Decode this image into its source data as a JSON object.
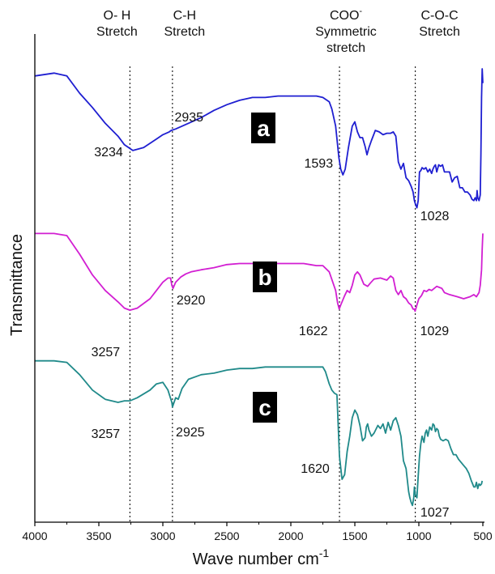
{
  "chart_data": {
    "type": "line",
    "title": "",
    "xlabel": "Wave number cm",
    "xlabel_sup": "-1",
    "ylabel": "Transmittance",
    "xlim": [
      4000,
      500
    ],
    "x_reversed": true,
    "xticks": [
      4000,
      3500,
      3000,
      2500,
      2000,
      1500,
      1000,
      500
    ],
    "y_ticks_shown": false,
    "grid": false,
    "legend": "none",
    "band_labels": [
      {
        "x": 3257,
        "lines": [
          "O- H",
          "Stretch"
        ]
      },
      {
        "x": 2925,
        "lines": [
          "C-H",
          "Stretch"
        ]
      },
      {
        "x": 1620,
        "lines": [
          "COO",
          "Symmetric",
          "stretch"
        ],
        "sup": "-"
      },
      {
        "x": 1028,
        "lines": [
          "C-O-C",
          "Stretch"
        ]
      }
    ],
    "reference_lines_x": [
      3257,
      2925,
      1620,
      1028
    ],
    "series": [
      {
        "name": "a",
        "color": "#1f1fd1",
        "x": [
          4000,
          3850,
          3750,
          3650,
          3550,
          3450,
          3350,
          3300,
          3234,
          3150,
          3050,
          3000,
          2950,
          2935,
          2900,
          2850,
          2800,
          2700,
          2600,
          2500,
          2400,
          2300,
          2200,
          2100,
          2000,
          1900,
          1850,
          1800,
          1750,
          1700,
          1680,
          1650,
          1625,
          1610,
          1593,
          1575,
          1550,
          1520,
          1500,
          1480,
          1460,
          1440,
          1420,
          1405,
          1390,
          1370,
          1340,
          1310,
          1280,
          1250,
          1220,
          1200,
          1180,
          1160,
          1140,
          1120,
          1100,
          1080,
          1060,
          1045,
          1035,
          1028,
          1015,
          1005,
          995,
          985,
          975,
          960,
          945,
          930,
          915,
          900,
          890,
          880,
          870,
          860,
          845,
          830,
          815,
          800,
          780,
          760,
          740,
          720,
          700,
          680,
          660,
          640,
          620,
          600,
          585,
          570,
          560,
          550,
          545,
          540,
          530,
          520,
          515,
          510,
          505,
          500
        ],
        "y": [
          95,
          97,
          95,
          83,
          73,
          62,
          53,
          47,
          43,
          45,
          51,
          54,
          56,
          57,
          58,
          60,
          62,
          66,
          71,
          75,
          78,
          80,
          80,
          81,
          81,
          81,
          81,
          81,
          80,
          77,
          72,
          60,
          38,
          30,
          26,
          30,
          45,
          60,
          63,
          56,
          52,
          52,
          46,
          40,
          45,
          50,
          57,
          56,
          54,
          55,
          55,
          56,
          53,
          35,
          30,
          34,
          24,
          22,
          18,
          14,
          8,
          6,
          3,
          8,
          28,
          29,
          31,
          30,
          31,
          28,
          30,
          27,
          30,
          32,
          33,
          28,
          33,
          32,
          33,
          28,
          28,
          28,
          21,
          24,
          25,
          17,
          17,
          14,
          14,
          12,
          9,
          8,
          10,
          8,
          15,
          10,
          8,
          12,
          40,
          80,
          100,
          90
        ]
      },
      {
        "name": "b",
        "color": "#d21fd2",
        "x": [
          4000,
          3850,
          3750,
          3650,
          3550,
          3450,
          3350,
          3300,
          3257,
          3200,
          3100,
          3050,
          3000,
          2960,
          2940,
          2930,
          2920,
          2900,
          2860,
          2820,
          2780,
          2700,
          2600,
          2500,
          2400,
          2300,
          2200,
          2100,
          2000,
          1900,
          1850,
          1800,
          1750,
          1700,
          1650,
          1635,
          1622,
          1610,
          1580,
          1560,
          1540,
          1520,
          1500,
          1480,
          1460,
          1430,
          1400,
          1380,
          1350,
          1300,
          1250,
          1220,
          1200,
          1180,
          1160,
          1140,
          1120,
          1100,
          1080,
          1060,
          1045,
          1035,
          1029,
          1015,
          1000,
          980,
          960,
          940,
          920,
          900,
          880,
          860,
          840,
          820,
          800,
          760,
          700,
          650,
          600,
          570,
          550,
          530,
          520,
          510,
          505,
          500
        ],
        "y": [
          95,
          95,
          93,
          75,
          55,
          40,
          29,
          23,
          21,
          23,
          32,
          40,
          48,
          52,
          52,
          45,
          42,
          48,
          53,
          56,
          58,
          60,
          62,
          65,
          66,
          66,
          66,
          66,
          66,
          66,
          65,
          64,
          64,
          58,
          40,
          28,
          22,
          26,
          35,
          40,
          38,
          45,
          55,
          58,
          55,
          46,
          44,
          47,
          51,
          52,
          50,
          54,
          52,
          40,
          36,
          40,
          34,
          32,
          28,
          26,
          22,
          22,
          20,
          26,
          32,
          35,
          40,
          39,
          41,
          40,
          42,
          44,
          43,
          42,
          38,
          36,
          34,
          32,
          34,
          36,
          34,
          38,
          45,
          60,
          80,
          95
        ]
      },
      {
        "name": "c",
        "color": "#208a8a",
        "x": [
          4000,
          3850,
          3750,
          3650,
          3550,
          3450,
          3350,
          3300,
          3257,
          3200,
          3100,
          3050,
          3000,
          2960,
          2930,
          2925,
          2900,
          2880,
          2850,
          2800,
          2700,
          2600,
          2500,
          2400,
          2300,
          2200,
          2100,
          2000,
          1900,
          1850,
          1800,
          1750,
          1730,
          1700,
          1680,
          1660,
          1640,
          1620,
          1600,
          1580,
          1560,
          1540,
          1520,
          1500,
          1480,
          1460,
          1440,
          1420,
          1410,
          1400,
          1390,
          1370,
          1350,
          1320,
          1300,
          1280,
          1260,
          1240,
          1220,
          1200,
          1180,
          1160,
          1140,
          1120,
          1100,
          1080,
          1070,
          1060,
          1050,
          1040,
          1035,
          1027,
          1015,
          1005,
          995,
          985,
          975,
          960,
          950,
          940,
          930,
          915,
          900,
          890,
          880,
          870,
          860,
          850,
          840,
          830,
          810,
          790,
          770,
          750,
          730,
          710,
          690,
          670,
          650,
          630,
          610,
          590,
          570,
          560,
          550,
          540,
          530,
          520,
          510,
          505
        ],
        "y": [
          97,
          97,
          96,
          88,
          78,
          72,
          70,
          71,
          71,
          73,
          78,
          82,
          83,
          78,
          70,
          67,
          73,
          72,
          79,
          85,
          88,
          89,
          91,
          92,
          92,
          93,
          93,
          93,
          93,
          93,
          93,
          93,
          90,
          82,
          78,
          76,
          75,
          35,
          20,
          23,
          38,
          48,
          60,
          65,
          62,
          55,
          45,
          47,
          54,
          56,
          52,
          48,
          50,
          55,
          53,
          56,
          50,
          57,
          52,
          58,
          60,
          55,
          48,
          32,
          27,
          12,
          8,
          5,
          3,
          8,
          15,
          10,
          8,
          22,
          35,
          43,
          48,
          44,
          50,
          52,
          48,
          54,
          52,
          56,
          55,
          51,
          53,
          52,
          48,
          46,
          45,
          46,
          45,
          40,
          36,
          36,
          33,
          31,
          29,
          27,
          24,
          19,
          15,
          15,
          18,
          14,
          17,
          16,
          17,
          19
        ]
      }
    ],
    "peak_labels": [
      {
        "series": "a",
        "x": 3234,
        "text": "3234"
      },
      {
        "series": "a",
        "x": 2935,
        "text": "2935"
      },
      {
        "series": "a",
        "x": 1593,
        "text": "1593"
      },
      {
        "series": "a",
        "x": 1028,
        "text": "1028"
      },
      {
        "series": "b",
        "x": 3257,
        "text": "3257"
      },
      {
        "series": "b",
        "x": 2920,
        "text": "2920"
      },
      {
        "series": "b",
        "x": 1622,
        "text": "1622"
      },
      {
        "series": "b",
        "x": 1029,
        "text": "1029"
      },
      {
        "series": "c",
        "x": 3257,
        "text": "3257"
      },
      {
        "series": "c",
        "x": 2925,
        "text": "2925"
      },
      {
        "series": "c",
        "x": 1620,
        "text": "1620"
      },
      {
        "series": "c",
        "x": 1027,
        "text": "1027"
      }
    ]
  }
}
